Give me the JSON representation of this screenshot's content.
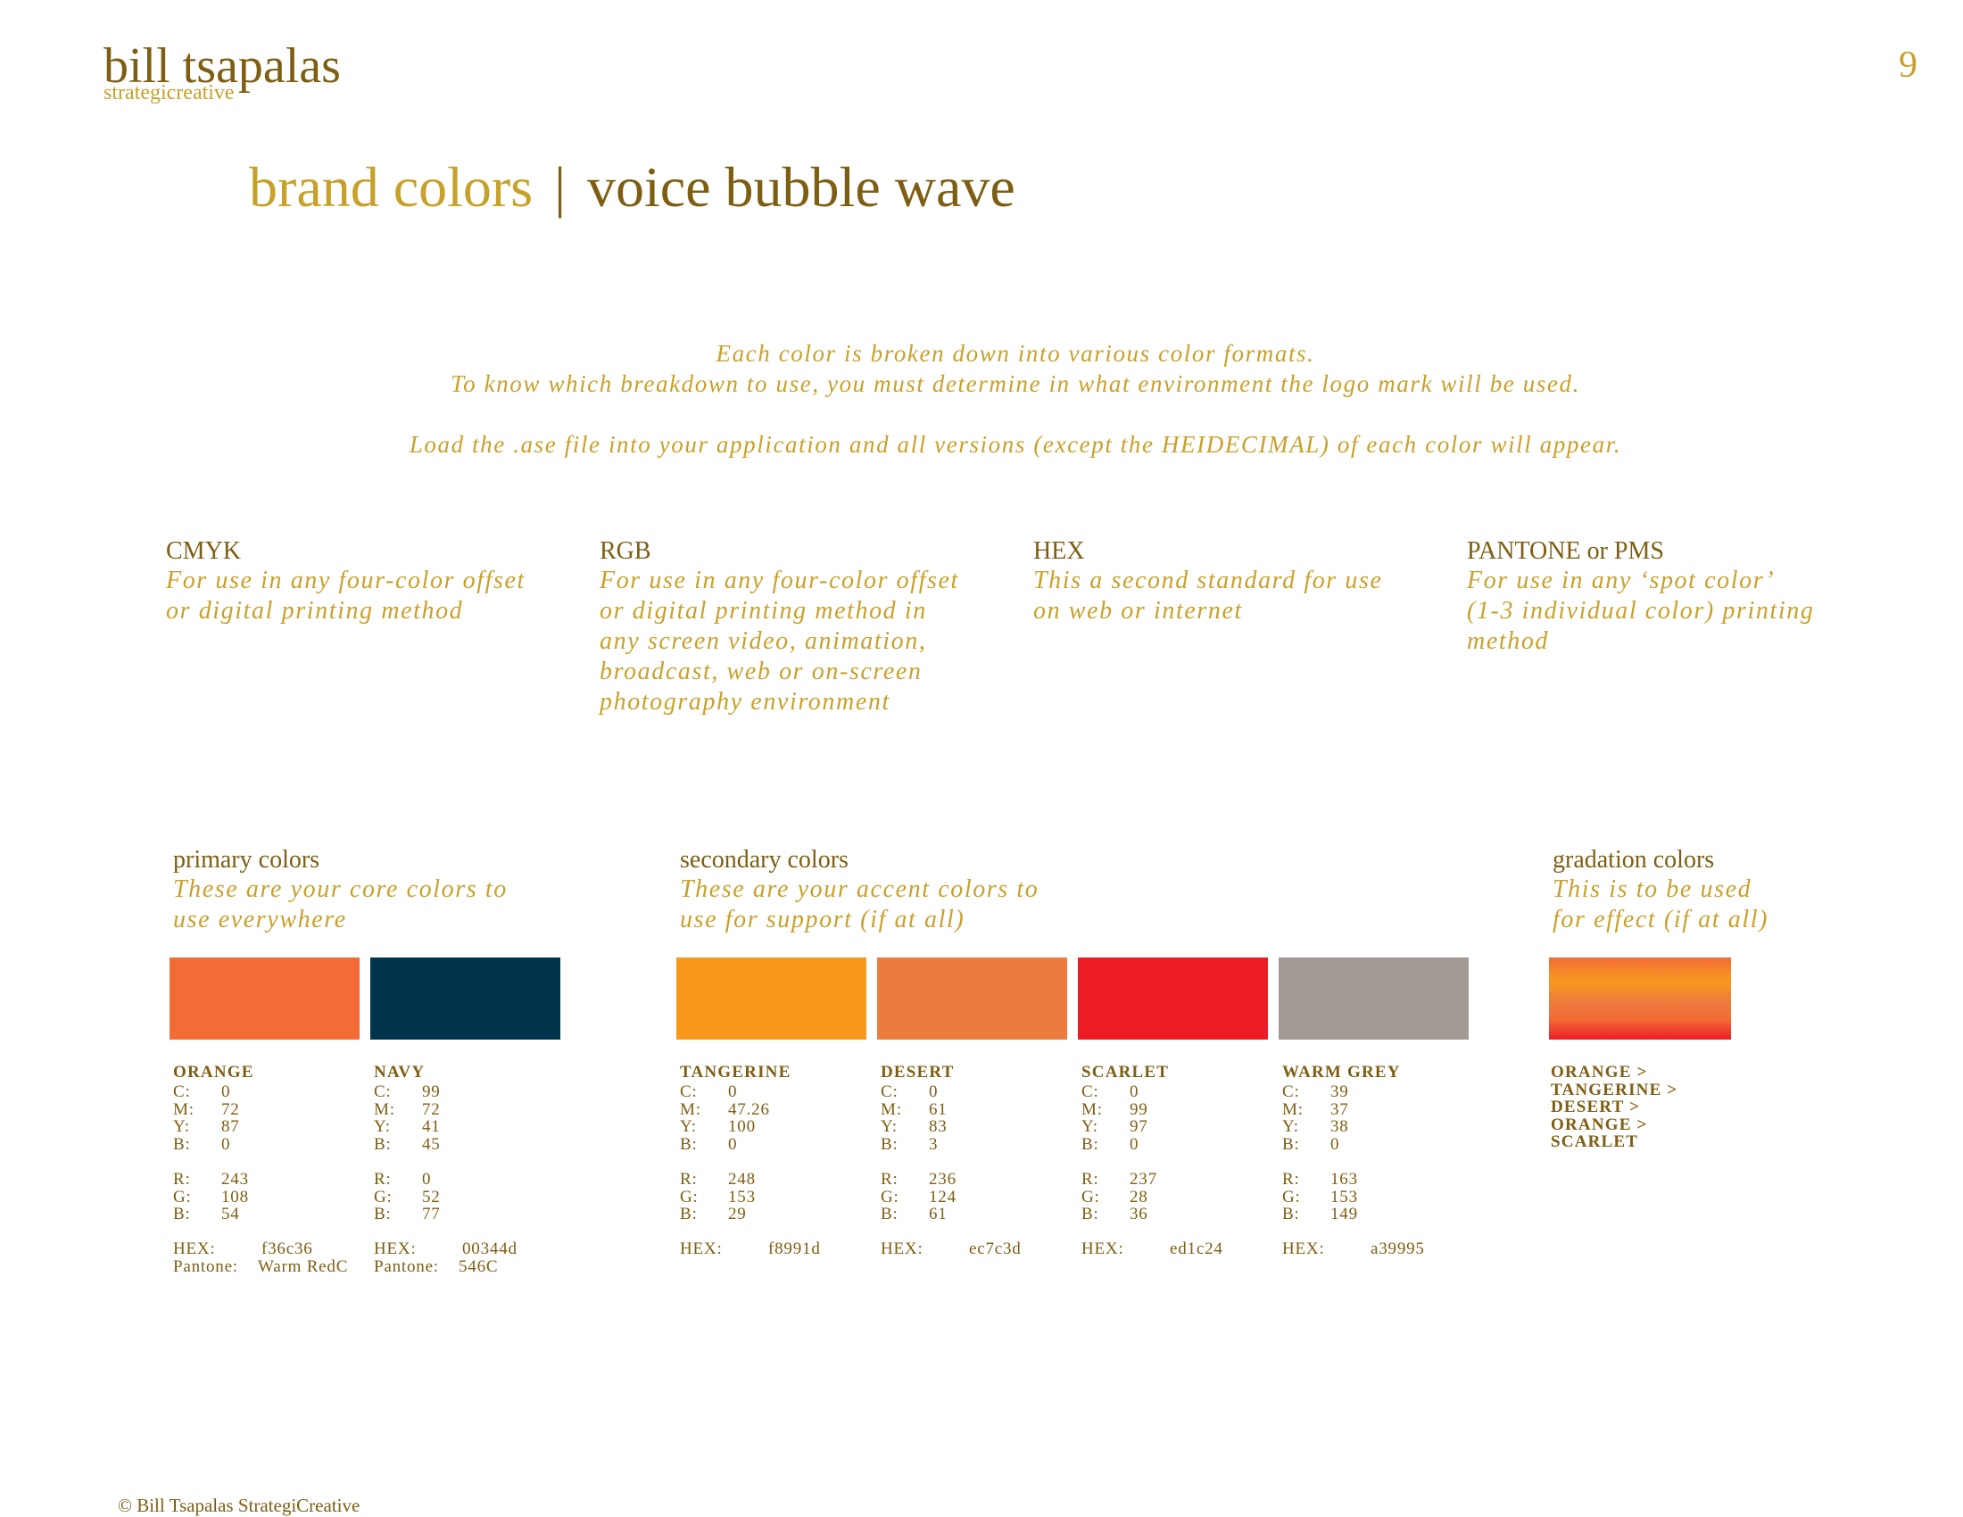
{
  "header": {
    "name": "bill tsapalas",
    "tagline": "strategicreative",
    "page_number": "9"
  },
  "title": {
    "primary": "brand colors",
    "separator": "|",
    "secondary": "voice bubble wave"
  },
  "intro": {
    "lines": [
      "Each color is broken down into various color formats.",
      "To know which breakdown to use, you must determine in what environment the logo mark will be used.",
      "Load the .ase file into your application and all versions (except the HEIDECIMAL) of each color will appear."
    ]
  },
  "formats": [
    {
      "name": "CMYK",
      "description": [
        "For use in any four-color offset",
        "or digital printing method"
      ]
    },
    {
      "name": "RGB",
      "description": [
        "For use in any four-color offset",
        "or digital printing method in",
        "any screen video, animation,",
        "broadcast, web or on-screen",
        "photography environment"
      ]
    },
    {
      "name": "HEX",
      "description": [
        "This a second standard for use",
        "on web or internet"
      ]
    },
    {
      "name": "PANTONE or PMS",
      "description": [
        "For use in any ‘spot color’",
        "(1-3 individual color) printing",
        "method"
      ]
    }
  ],
  "labels": {
    "cmyk": [
      "C:",
      "M:",
      "Y:",
      "B:"
    ],
    "rgb": [
      "R:",
      "G:",
      "B:"
    ],
    "hex": "HEX:",
    "pantone": "Pantone:"
  },
  "groups": [
    {
      "title": "primary colors",
      "description": [
        "These are your core colors to",
        "use everywhere"
      ],
      "swatches": [
        {
          "name": "ORANGE",
          "cmyk": [
            0,
            72,
            87,
            0
          ],
          "rgb": [
            243,
            108,
            54
          ],
          "hex": "f36c36",
          "pantone": "Warm RedC"
        },
        {
          "name": "NAVY",
          "cmyk": [
            99,
            72,
            41,
            45
          ],
          "rgb": [
            0,
            52,
            77
          ],
          "hex": "00344d",
          "pantone": "546C"
        }
      ]
    },
    {
      "title": "secondary colors",
      "description": [
        "These are your accent colors to",
        "use for support (if at all)"
      ],
      "swatches": [
        {
          "name": "TANGERINE",
          "cmyk": [
            0,
            47.26,
            100,
            0
          ],
          "rgb": [
            248,
            153,
            29
          ],
          "hex": "f8991d"
        },
        {
          "name": "DESERT",
          "cmyk": [
            0,
            61,
            83,
            3
          ],
          "rgb": [
            236,
            124,
            61
          ],
          "hex": "ec7c3d"
        },
        {
          "name": "SCARLET",
          "cmyk": [
            0,
            99,
            97,
            0
          ],
          "rgb": [
            237,
            28,
            36
          ],
          "hex": "ed1c24"
        },
        {
          "name": "WARM GREY",
          "cmyk": [
            39,
            37,
            38,
            0
          ],
          "rgb": [
            163,
            153,
            149
          ],
          "hex": "a39995"
        }
      ]
    },
    {
      "title": "gradation colors",
      "description": [
        "This is to be used",
        "for effect (if at all)"
      ],
      "gradient": [
        "ORANGE >",
        "TANGERINE >",
        "DESERT >",
        "ORANGE >",
        "SCARLET"
      ]
    }
  ],
  "footer": "© Bill Tsapalas StrategiCreative"
}
